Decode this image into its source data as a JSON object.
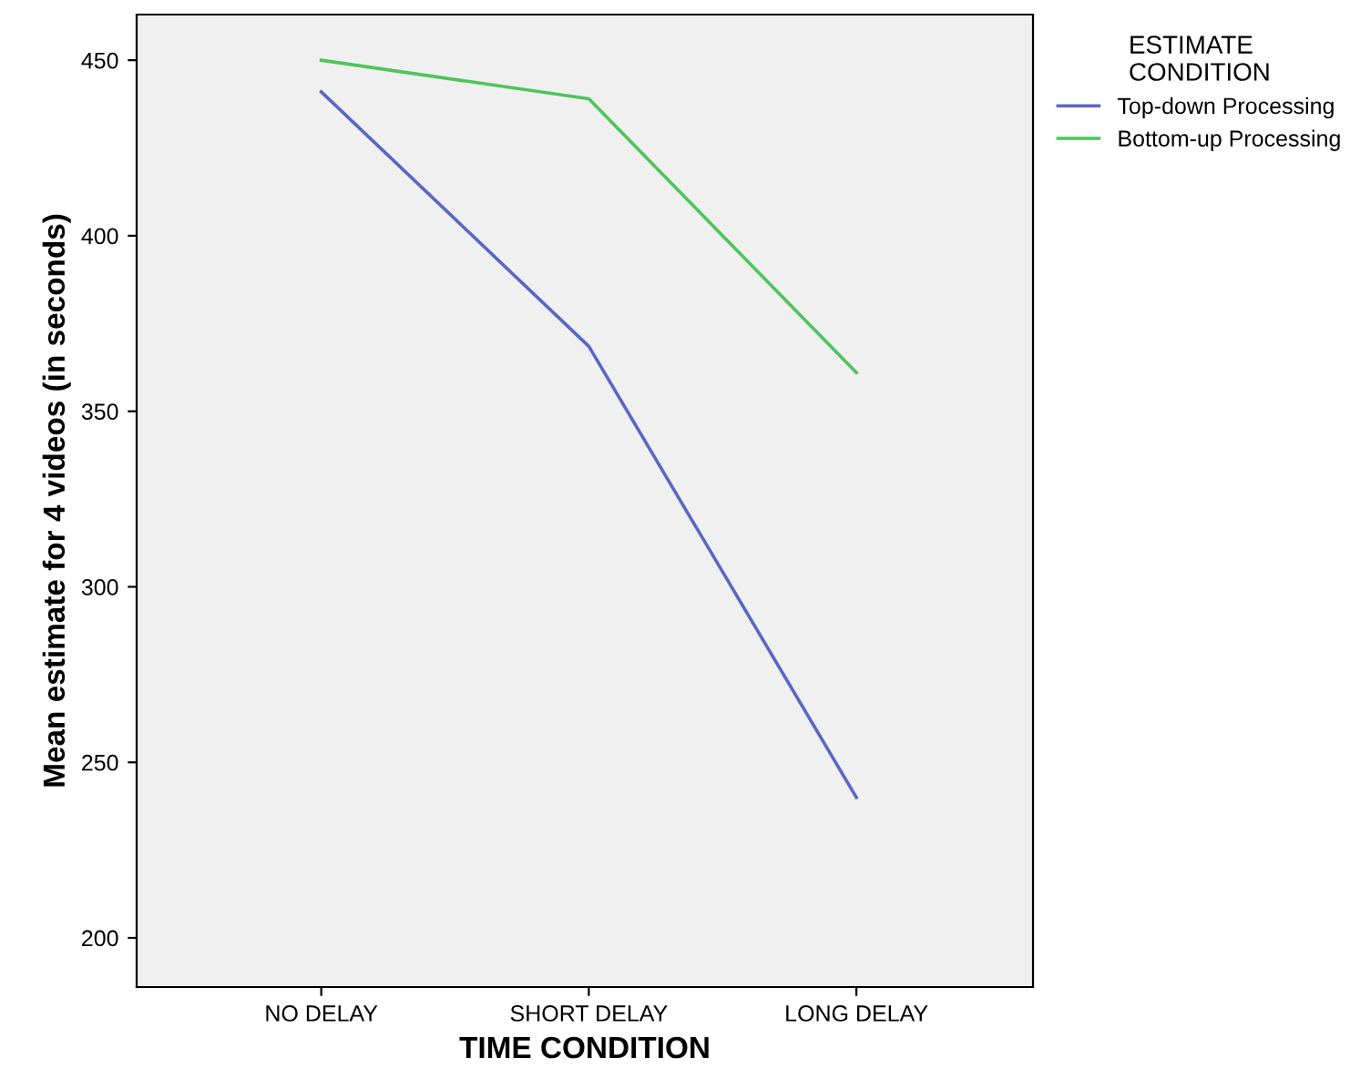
{
  "chart_data": {
    "type": "line",
    "categories": [
      "NO DELAY",
      "SHORT DELAY",
      "LONG DELAY"
    ],
    "series": [
      {
        "name": "Top-down Processing",
        "color": "#5b67c4",
        "values": [
          441,
          368.5,
          240
        ]
      },
      {
        "name": "Bottom-up Processing",
        "color": "#4ec55a",
        "values": [
          450,
          439,
          361
        ]
      }
    ],
    "xlabel": "TIME CONDITION",
    "ylabel": "Mean estimate for 4 videos (in seconds)",
    "legend_title": "ESTIMATE\nCONDITION",
    "legend": "right",
    "ylim": [
      186,
      463
    ],
    "yticks": [
      200,
      250,
      300,
      350,
      400,
      450
    ],
    "grid": false,
    "marker": "none",
    "line_style": "solid"
  }
}
